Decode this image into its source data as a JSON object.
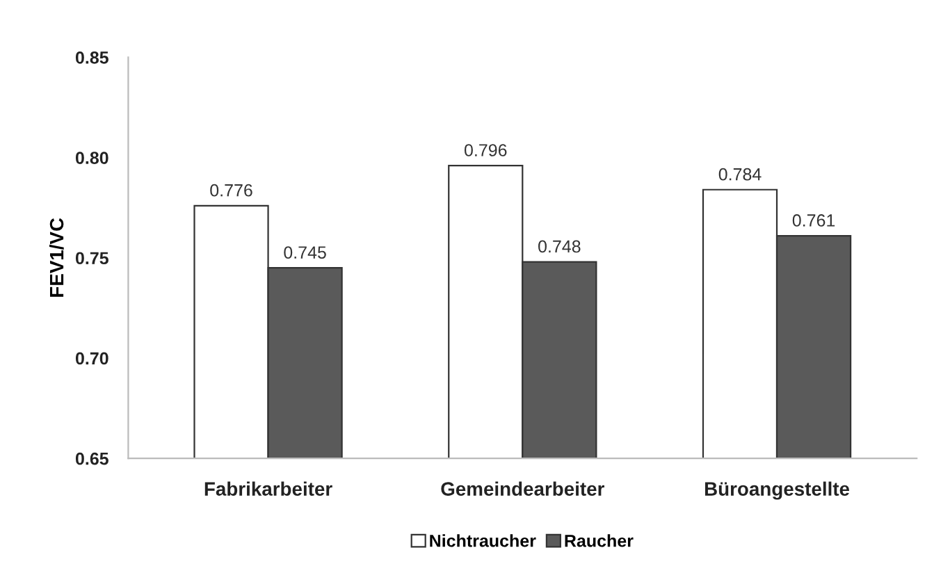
{
  "chart_data": {
    "type": "bar",
    "ylabel": "FEV1/VC",
    "categories": [
      "Fabrikarbeiter",
      "Gemeindearbeiter",
      "Büroangestellte"
    ],
    "series": [
      {
        "name": "Nichtraucher",
        "color": "#ffffff",
        "values": [
          0.776,
          0.796,
          0.784
        ]
      },
      {
        "name": "Raucher",
        "color": "#5a5a5a",
        "values": [
          0.745,
          0.748,
          0.761
        ]
      }
    ],
    "ylim": [
      0.65,
      0.85
    ],
    "yticks": [
      {
        "value": 0.65,
        "label": "0.65"
      },
      {
        "value": 0.7,
        "label": "0.70"
      },
      {
        "value": 0.75,
        "label": "0.75"
      },
      {
        "value": 0.8,
        "label": "0.80"
      },
      {
        "value": 0.85,
        "label": "0.85"
      }
    ],
    "data_labels": true,
    "grid": false,
    "legend": "bottom"
  }
}
